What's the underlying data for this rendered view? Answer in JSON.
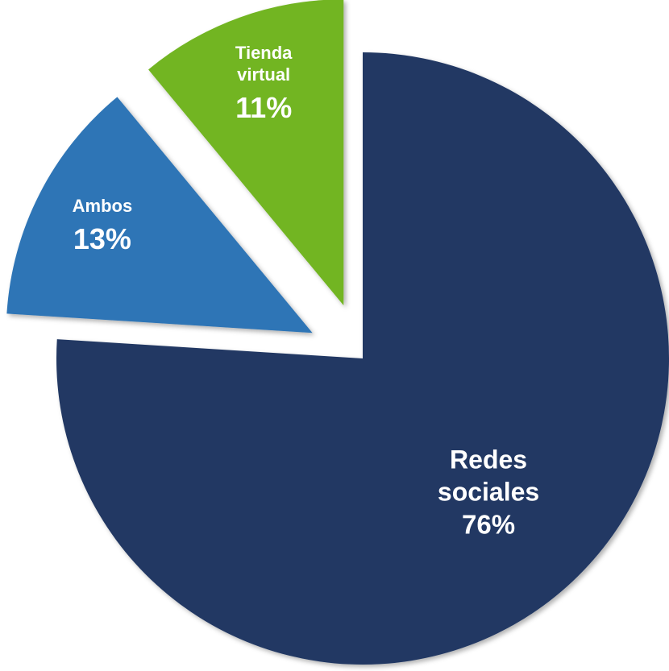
{
  "chart_data": {
    "type": "pie",
    "categories": [
      "Redes sociales",
      "Ambos",
      "Tienda virtual"
    ],
    "values": [
      76,
      13,
      11
    ],
    "value_labels": [
      "76%",
      "13%",
      "11%"
    ],
    "colors": [
      "#203864",
      "#2e75b6",
      "#72b524"
    ]
  }
}
